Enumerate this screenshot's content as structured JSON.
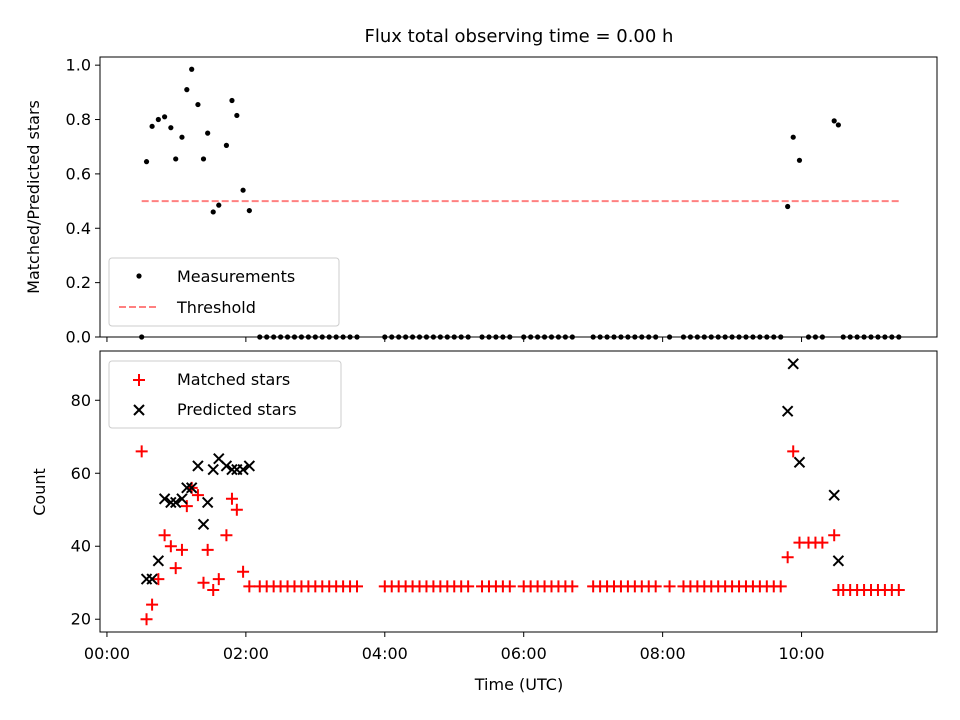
{
  "title": "Flux total observing time = 0.00 h",
  "chart_data": [
    {
      "type": "scatter",
      "ylabel": "Matched/Predicted stars",
      "xlabel": "",
      "xlim": [
        -0.1,
        11.95
      ],
      "ylim": [
        0,
        1.03
      ],
      "yticks": [
        "0.0",
        "0.2",
        "0.4",
        "0.6",
        "0.8",
        "1.0"
      ],
      "ytick_values": [
        0,
        0.2,
        0.4,
        0.6,
        0.8,
        1.0
      ],
      "legend_position": "lower-left",
      "series": [
        {
          "name": "Measurements",
          "marker": "dot",
          "color": "#000000",
          "x": [
            0.5,
            0.57,
            0.65,
            0.74,
            0.83,
            0.92,
            0.99,
            1.08,
            1.15,
            1.22,
            1.31,
            1.39,
            1.45,
            1.53,
            1.61,
            1.72,
            1.8,
            1.87,
            1.96,
            2.05,
            2.2,
            2.3,
            2.4,
            2.5,
            2.6,
            2.7,
            2.8,
            2.9,
            3.0,
            3.1,
            3.2,
            3.3,
            3.4,
            3.5,
            3.6,
            4.0,
            4.1,
            4.2,
            4.3,
            4.4,
            4.5,
            4.6,
            4.7,
            4.8,
            4.9,
            5.0,
            5.1,
            5.2,
            5.4,
            5.5,
            5.6,
            5.7,
            5.8,
            6.0,
            6.1,
            6.2,
            6.3,
            6.4,
            6.5,
            6.6,
            6.7,
            7.0,
            7.1,
            7.2,
            7.3,
            7.4,
            7.5,
            7.6,
            7.7,
            7.8,
            7.9,
            8.1,
            8.3,
            8.4,
            8.5,
            8.6,
            8.7,
            8.8,
            8.9,
            9.0,
            9.1,
            9.2,
            9.3,
            9.4,
            9.5,
            9.6,
            9.7,
            9.8,
            9.88,
            9.97,
            10.1,
            10.2,
            10.3,
            10.47,
            10.53,
            10.6,
            10.7,
            10.8,
            10.9,
            11.0,
            11.1,
            11.2,
            11.3,
            11.4
          ],
          "y": [
            0.0,
            0.645,
            0.775,
            0.8,
            0.81,
            0.77,
            0.655,
            0.735,
            0.91,
            0.985,
            0.855,
            0.655,
            0.75,
            0.46,
            0.485,
            0.705,
            0.87,
            0.815,
            0.54,
            0.465,
            0.0,
            0.0,
            0.0,
            0.0,
            0.0,
            0.0,
            0.0,
            0.0,
            0.0,
            0.0,
            0.0,
            0.0,
            0.0,
            0.0,
            0.0,
            0.0,
            0.0,
            0.0,
            0.0,
            0.0,
            0.0,
            0.0,
            0.0,
            0.0,
            0.0,
            0.0,
            0.0,
            0.0,
            0.0,
            0.0,
            0.0,
            0.0,
            0.0,
            0.0,
            0.0,
            0.0,
            0.0,
            0.0,
            0.0,
            0.0,
            0.0,
            0.0,
            0.0,
            0.0,
            0.0,
            0.0,
            0.0,
            0.0,
            0.0,
            0.0,
            0.0,
            0.0,
            0.0,
            0.0,
            0.0,
            0.0,
            0.0,
            0.0,
            0.0,
            0.0,
            0.0,
            0.0,
            0.0,
            0.0,
            0.0,
            0.0,
            0.0,
            0.48,
            0.735,
            0.65,
            0.0,
            0.0,
            0.0,
            0.795,
            0.78,
            0.0,
            0.0,
            0.0,
            0.0,
            0.0,
            0.0,
            0.0,
            0.0,
            0.0
          ]
        },
        {
          "name": "Threshold",
          "marker": "dashed-line",
          "color": "#ff8080",
          "x": [
            0.5,
            11.4
          ],
          "y": [
            0.5,
            0.5
          ]
        }
      ]
    },
    {
      "type": "scatter",
      "ylabel": "Count",
      "xlabel": "Time (UTC)",
      "xlim": [
        -0.1,
        11.95
      ],
      "ylim": [
        16.5,
        93.5
      ],
      "yticks": [
        "20",
        "40",
        "60",
        "80"
      ],
      "ytick_values": [
        20,
        40,
        60,
        80
      ],
      "xticks": [
        "00:00",
        "02:00",
        "04:00",
        "06:00",
        "08:00",
        "10:00"
      ],
      "xtick_values": [
        0,
        2,
        4,
        6,
        8,
        10
      ],
      "legend_position": "upper-left",
      "series": [
        {
          "name": "Matched stars",
          "marker": "plus",
          "color": "#ff0000",
          "x": [
            0.5,
            0.57,
            0.65,
            0.74,
            0.83,
            0.92,
            0.99,
            1.08,
            1.15,
            1.22,
            1.31,
            1.39,
            1.45,
            1.53,
            1.61,
            1.72,
            1.8,
            1.87,
            1.96,
            2.05,
            2.2,
            2.3,
            2.4,
            2.5,
            2.6,
            2.7,
            2.8,
            2.9,
            3.0,
            3.1,
            3.2,
            3.3,
            3.4,
            3.5,
            3.6,
            4.0,
            4.1,
            4.2,
            4.3,
            4.4,
            4.5,
            4.6,
            4.7,
            4.8,
            4.9,
            5.0,
            5.1,
            5.2,
            5.4,
            5.5,
            5.6,
            5.7,
            5.8,
            6.0,
            6.1,
            6.2,
            6.3,
            6.4,
            6.5,
            6.6,
            6.7,
            7.0,
            7.1,
            7.2,
            7.3,
            7.4,
            7.5,
            7.6,
            7.7,
            7.8,
            7.9,
            8.1,
            8.3,
            8.4,
            8.5,
            8.6,
            8.7,
            8.8,
            8.9,
            9.0,
            9.1,
            9.2,
            9.3,
            9.4,
            9.5,
            9.6,
            9.7,
            9.8,
            9.88,
            9.97,
            10.1,
            10.2,
            10.3,
            10.47,
            10.53,
            10.6,
            10.7,
            10.8,
            10.9,
            11.0,
            11.1,
            11.2,
            11.3,
            11.4
          ],
          "y": [
            66,
            20,
            24,
            31,
            43,
            40,
            34,
            39,
            51,
            56,
            54,
            30,
            39,
            28,
            31,
            43,
            53,
            50,
            33,
            29,
            29,
            29,
            29,
            29,
            29,
            29,
            29,
            29,
            29,
            29,
            29,
            29,
            29,
            29,
            29,
            29,
            29,
            29,
            29,
            29,
            29,
            29,
            29,
            29,
            29,
            29,
            29,
            29,
            29,
            29,
            29,
            29,
            29,
            29,
            29,
            29,
            29,
            29,
            29,
            29,
            29,
            29,
            29,
            29,
            29,
            29,
            29,
            29,
            29,
            29,
            29,
            29,
            29,
            29,
            29,
            29,
            29,
            29,
            29,
            29,
            29,
            29,
            29,
            29,
            29,
            29,
            29,
            37,
            66,
            41,
            41,
            41,
            41,
            43,
            28,
            28,
            28,
            28,
            28,
            28,
            28,
            28,
            28,
            28
          ]
        },
        {
          "name": "Predicted stars",
          "marker": "x",
          "color": "#000000",
          "x": [
            0.57,
            0.65,
            0.74,
            0.83,
            0.92,
            0.99,
            1.08,
            1.15,
            1.22,
            1.31,
            1.39,
            1.45,
            1.53,
            1.61,
            1.72,
            1.8,
            1.87,
            1.96,
            2.05,
            9.8,
            9.88,
            9.97,
            10.47,
            10.53
          ],
          "y": [
            31,
            31,
            36,
            53,
            52,
            52,
            53,
            56,
            56,
            62,
            46,
            52,
            61,
            64,
            62,
            61,
            61,
            61,
            62,
            77,
            90,
            63,
            54,
            36
          ]
        }
      ]
    }
  ]
}
